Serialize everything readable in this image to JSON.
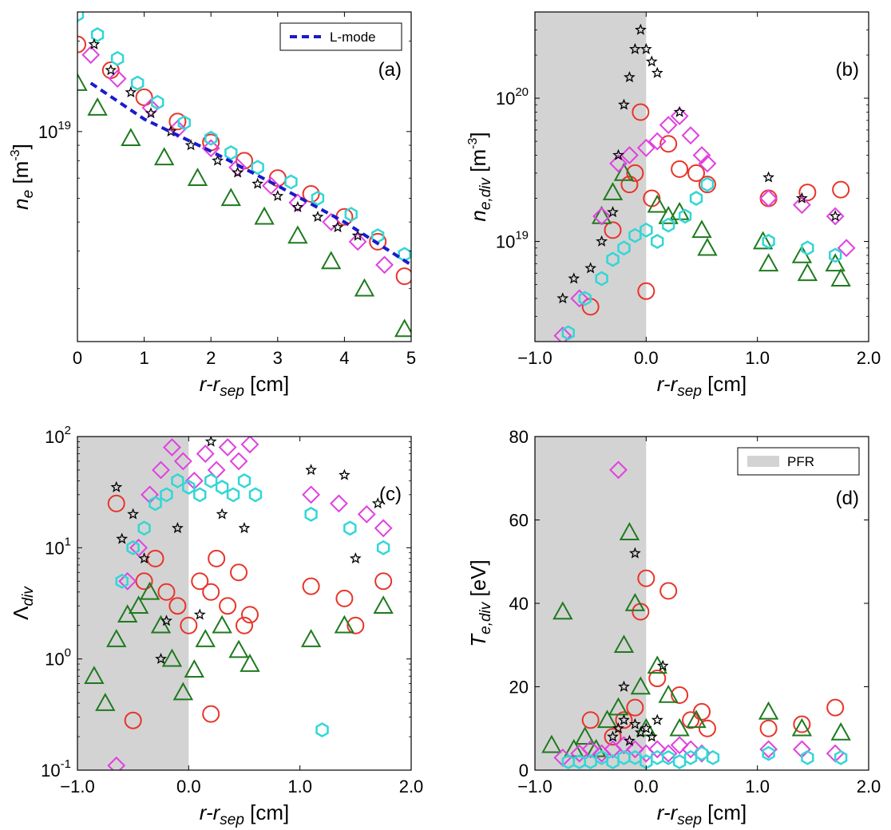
{
  "colors": {
    "o_red": "#e8342a",
    "tri_green": "#1e7a1e",
    "dia_magenta": "#e040e0",
    "hex_cyan": "#33d6d6",
    "star_black": "#000000",
    "lmode_blue": "#1a1acc",
    "pfr_gray": "#d3d3d3"
  },
  "chart_data": [
    {
      "panel": "(a)",
      "type": "scatter",
      "xlabel": "r-r",
      "xlabel_sub": "sep",
      "xlabel_unit": " [cm]",
      "ylabel": "n",
      "ylabel_sub": "e",
      "ylabel_unit": " [m",
      "ylabel_exp": "-3",
      "ylabel_close": "]",
      "xlim": [
        0,
        5
      ],
      "ylim": [
        2000000000000000000,
        25000000000000000000
      ],
      "yscale": "log",
      "xticks": [
        "0",
        "1",
        "2",
        "3",
        "4",
        "5"
      ],
      "yticks": [
        {
          "base": "10",
          "exp": "19",
          "value": 10000000000000000000
        }
      ],
      "legend": [
        {
          "label": "L-mode",
          "style": "dashed",
          "color": "#1a1acc"
        }
      ],
      "legend_position": "top-right",
      "series": [
        {
          "marker": "circle",
          "color": "#e8342a",
          "x": [
            0,
            0.5,
            1,
            1.5,
            2,
            2.5,
            3,
            3.5,
            4,
            4.5,
            4.9
          ],
          "y": [
            1.95e+19,
            1.6e+19,
            1.3e+19,
            1.08e+19,
            9.2e+18,
            8e+18,
            7e+18,
            6.2e+18,
            5.2e+18,
            4.3e+18,
            3.3e+18
          ]
        },
        {
          "marker": "triangle",
          "color": "#1e7a1e",
          "x": [
            0,
            0.3,
            0.8,
            1.3,
            1.8,
            2.3,
            2.8,
            3.3,
            3.8,
            4.3,
            4.9
          ],
          "y": [
            1.45e+19,
            1.2e+19,
            9.5e+18,
            8.2e+18,
            7e+18,
            6e+18,
            5.2e+18,
            4.5e+18,
            3.7e+18,
            3e+18,
            2.2e+18
          ]
        },
        {
          "marker": "diamond",
          "color": "#e040e0",
          "x": [
            0.2,
            0.6,
            1.1,
            1.5,
            2.0,
            2.4,
            2.9,
            3.3,
            3.8,
            4.2,
            4.6
          ],
          "y": [
            1.8e+19,
            1.5e+19,
            1.2e+19,
            1.02e+19,
            8.8e+18,
            7.6e+18,
            6.6e+18,
            5.8e+18,
            5e+18,
            4.3e+18,
            3.6e+18
          ]
        },
        {
          "marker": "hexagon",
          "color": "#33d6d6",
          "x": [
            0,
            0.3,
            0.6,
            0.9,
            1.2,
            1.6,
            2.0,
            2.3,
            2.7,
            3.2,
            3.6,
            4.1,
            4.5,
            4.9
          ],
          "y": [
            2.45e+19,
            2.1e+19,
            1.75e+19,
            1.45e+19,
            1.25e+19,
            1.07e+19,
            9.5e+18,
            8.5e+18,
            7.6e+18,
            6.8e+18,
            6e+18,
            5.3e+18,
            4.5e+18,
            3.9e+18
          ]
        },
        {
          "marker": "star",
          "color": "#000000",
          "x": [
            0.25,
            0.5,
            0.8,
            1.1,
            1.4,
            1.7,
            2.1,
            2.4,
            2.7,
            3.0,
            3.3,
            3.6,
            3.9,
            4.2
          ],
          "y": [
            1.95e+19,
            1.6e+19,
            1.35e+19,
            1.15e+19,
            1e+19,
            9e+18,
            8e+18,
            7.3e+18,
            6.7e+18,
            6.1e+18,
            5.6e+18,
            5.2e+18,
            4.8e+18,
            4.5e+18
          ]
        }
      ],
      "line": {
        "label": "L-mode",
        "x": [
          0.2,
          1,
          2,
          3,
          4,
          5
        ],
        "y": [
          1.45e+19,
          1.1e+19,
          8.6e+18,
          6.6e+18,
          5e+18,
          3.6e+18
        ]
      }
    },
    {
      "panel": "(b)",
      "type": "scatter",
      "xlabel": "r-r",
      "xlabel_sub": "sep",
      "xlabel_unit": " [cm]",
      "ylabel": "n",
      "ylabel_sub": "e,div",
      "ylabel_unit": " [m",
      "ylabel_exp": "-3",
      "ylabel_close": "]",
      "xlim": [
        -1,
        2
      ],
      "ylim": [
        2000000000000000000,
        400000000000000000000
      ],
      "yscale": "log",
      "xticks": [
        "−1.0",
        "0.0",
        "1.0",
        "2.0"
      ],
      "yticks": [
        {
          "base": "10",
          "exp": "19",
          "value": 10000000000000000000
        },
        {
          "base": "10",
          "exp": "20",
          "value": 100000000000000000000
        }
      ],
      "shaded_region": [
        -1,
        0
      ],
      "series": [
        {
          "marker": "circle",
          "color": "#e8342a",
          "x": [
            -0.5,
            -0.3,
            -0.15,
            -0.1,
            0.0,
            0.05,
            0.2,
            0.3,
            0.45,
            0.55,
            1.1,
            1.45,
            1.75,
            -0.05
          ],
          "y": [
            3.5e+18,
            1.2e+19,
            2.5e+19,
            3e+19,
            4.5e+18,
            2e+19,
            4.8e+19,
            3.2e+19,
            3e+19,
            2.5e+19,
            2e+19,
            2.2e+19,
            2.3e+19,
            8e+19
          ]
        },
        {
          "marker": "triangle",
          "color": "#1e7a1e",
          "x": [
            -0.4,
            -0.3,
            -0.2,
            0.1,
            0.2,
            0.3,
            0.5,
            0.55,
            1.05,
            1.1,
            1.4,
            1.45,
            1.7,
            1.75
          ],
          "y": [
            1.5e+19,
            2.2e+19,
            3e+19,
            1.8e+19,
            1.5e+19,
            1.6e+19,
            1.2e+19,
            9e+18,
            1e+19,
            7e+18,
            8e+18,
            6e+18,
            7e+18,
            5.5e+18
          ]
        },
        {
          "marker": "diamond",
          "color": "#e040e0",
          "x": [
            -0.75,
            -0.6,
            -0.4,
            -0.25,
            -0.15,
            0.0,
            0.1,
            0.2,
            0.3,
            0.4,
            0.5,
            0.55,
            1.1,
            1.4,
            1.7,
            1.8
          ],
          "y": [
            2.2e+18,
            4e+18,
            1.5e+19,
            3.5e+19,
            4e+19,
            4.5e+19,
            5e+19,
            6.5e+19,
            7.5e+19,
            5.5e+19,
            4e+19,
            3.5e+19,
            2e+19,
            1.8e+19,
            1.5e+19,
            9e+18
          ]
        },
        {
          "marker": "hexagon",
          "color": "#33d6d6",
          "x": [
            -0.7,
            -0.55,
            -0.4,
            -0.3,
            -0.2,
            -0.1,
            0.0,
            0.1,
            0.2,
            0.35,
            0.45,
            0.55,
            1.1,
            1.45,
            1.7
          ],
          "y": [
            2.3e+18,
            4e+18,
            5.5e+18,
            7.5e+18,
            9e+18,
            1.1e+19,
            1.2e+19,
            1e+19,
            1.3e+19,
            1.5e+19,
            2e+19,
            2.5e+19,
            1e+19,
            9e+18,
            8e+18
          ]
        },
        {
          "marker": "star",
          "color": "#000000",
          "x": [
            -0.75,
            -0.65,
            -0.5,
            -0.4,
            -0.3,
            -0.25,
            -0.2,
            -0.15,
            -0.1,
            -0.05,
            0.0,
            0.05,
            0.1,
            0.3,
            1.1,
            1.4,
            1.7
          ],
          "y": [
            4e+18,
            5.5e+18,
            6.5e+18,
            1e+19,
            1.6e+19,
            4e+19,
            9e+19,
            1.4e+20,
            2.2e+20,
            3e+20,
            2.2e+20,
            1.8e+20,
            1.5e+20,
            8e+19,
            2.8e+19,
            2e+19,
            1.5e+19
          ]
        }
      ]
    },
    {
      "panel": "(c)",
      "type": "scatter",
      "xlabel": "r-r",
      "xlabel_sub": "sep",
      "xlabel_unit": " [cm]",
      "ylabel": "Λ",
      "ylabel_sub": "div",
      "ylabel_unit": "",
      "ylabel_exp": "",
      "ylabel_close": "",
      "xlim": [
        -1,
        2
      ],
      "ylim": [
        0.1,
        100
      ],
      "yscale": "log",
      "xticks": [
        "−1.0",
        "0.0",
        "1.0",
        "2.0"
      ],
      "yticks": [
        {
          "base": "10",
          "exp": "-1",
          "value": 0.1
        },
        {
          "base": "10",
          "exp": "0",
          "value": 1
        },
        {
          "base": "10",
          "exp": "1",
          "value": 10
        },
        {
          "base": "10",
          "exp": "2",
          "value": 100
        }
      ],
      "shaded_region": [
        -1,
        0
      ],
      "series": [
        {
          "marker": "circle",
          "color": "#e8342a",
          "x": [
            -0.65,
            -0.5,
            -0.4,
            -0.3,
            -0.2,
            -0.1,
            0.0,
            0.1,
            0.2,
            0.25,
            0.35,
            0.45,
            0.5,
            0.55,
            1.1,
            1.4,
            1.5,
            1.75,
            0.2
          ],
          "y": [
            25,
            0.28,
            5,
            8,
            4,
            3,
            2,
            5,
            4,
            8,
            3,
            6,
            2,
            2.5,
            4.5,
            3.5,
            2,
            5,
            0.32
          ]
        },
        {
          "marker": "triangle",
          "color": "#1e7a1e",
          "x": [
            -0.85,
            -0.75,
            -0.65,
            -0.55,
            -0.45,
            -0.35,
            -0.25,
            -0.15,
            -0.05,
            0.05,
            0.15,
            0.3,
            0.45,
            0.55,
            1.1,
            1.4,
            1.75
          ],
          "y": [
            0.7,
            0.4,
            1.5,
            2.5,
            3,
            4,
            2,
            1,
            0.5,
            0.8,
            1.5,
            2,
            1.2,
            0.9,
            1.5,
            2,
            3
          ]
        },
        {
          "marker": "diamond",
          "color": "#e040e0",
          "x": [
            -0.65,
            -0.55,
            -0.45,
            -0.35,
            -0.25,
            -0.15,
            -0.05,
            0.05,
            0.15,
            0.25,
            0.35,
            0.45,
            0.55,
            1.1,
            1.35,
            1.6,
            1.75
          ],
          "y": [
            0.11,
            5,
            10,
            30,
            50,
            80,
            60,
            40,
            70,
            50,
            80,
            60,
            85,
            30,
            25,
            20,
            15
          ]
        },
        {
          "marker": "hexagon",
          "color": "#33d6d6",
          "x": [
            -0.6,
            -0.5,
            -0.4,
            -0.3,
            -0.2,
            -0.1,
            0.0,
            0.1,
            0.2,
            0.3,
            0.4,
            0.5,
            0.6,
            1.1,
            1.45,
            1.75,
            1.2
          ],
          "y": [
            5,
            10,
            15,
            25,
            30,
            40,
            35,
            30,
            40,
            35,
            30,
            40,
            30,
            20,
            15,
            10,
            0.23
          ]
        },
        {
          "marker": "star",
          "color": "#000000",
          "x": [
            -0.65,
            -0.6,
            -0.5,
            -0.4,
            -0.25,
            -0.2,
            -0.1,
            0.1,
            0.2,
            0.3,
            0.5,
            1.1,
            1.4,
            1.7,
            1.5
          ],
          "y": [
            35,
            12,
            20,
            8,
            1.0,
            2.2,
            15,
            2.5,
            90,
            20,
            15,
            50,
            45,
            25,
            8
          ]
        }
      ]
    },
    {
      "panel": "(d)",
      "type": "scatter",
      "xlabel": "r-r",
      "xlabel_sub": "sep",
      "xlabel_unit": " [cm]",
      "ylabel": "T",
      "ylabel_sub": "e,div",
      "ylabel_unit": " [eV]",
      "ylabel_exp": "",
      "ylabel_close": "",
      "xlim": [
        -1,
        2
      ],
      "ylim": [
        0,
        80
      ],
      "yscale": "linear",
      "xticks": [
        "−1.0",
        "0.0",
        "1.0",
        "2.0"
      ],
      "yticks": [
        {
          "base": "0",
          "exp": "",
          "value": 0
        },
        {
          "base": "20",
          "exp": "",
          "value": 20
        },
        {
          "base": "40",
          "exp": "",
          "value": 40
        },
        {
          "base": "60",
          "exp": "",
          "value": 60
        },
        {
          "base": "80",
          "exp": "",
          "value": 80
        }
      ],
      "shaded_region": [
        -1,
        0
      ],
      "legend": [
        {
          "label": "PFR",
          "style": "patch",
          "color": "#d3d3d3"
        }
      ],
      "legend_position": "top-right",
      "series": [
        {
          "marker": "circle",
          "color": "#e8342a",
          "x": [
            -0.5,
            -0.3,
            -0.2,
            -0.1,
            -0.05,
            0.0,
            0.1,
            0.2,
            0.3,
            0.4,
            0.5,
            0.55,
            1.1,
            1.4,
            1.7
          ],
          "y": [
            12,
            8,
            12,
            15,
            38,
            46,
            22,
            43,
            18,
            12,
            14,
            10,
            10,
            11,
            15
          ]
        },
        {
          "marker": "triangle",
          "color": "#1e7a1e",
          "x": [
            -0.85,
            -0.75,
            -0.65,
            -0.55,
            -0.45,
            -0.35,
            -0.25,
            -0.2,
            -0.15,
            -0.1,
            -0.05,
            0.0,
            0.1,
            0.2,
            0.3,
            0.45,
            1.1,
            1.4,
            1.75
          ],
          "y": [
            6,
            38,
            5,
            8,
            5,
            12,
            15,
            30,
            57,
            40,
            20,
            10,
            25,
            18,
            10,
            12,
            14,
            10,
            9
          ]
        },
        {
          "marker": "diamond",
          "color": "#e040e0",
          "x": [
            -0.75,
            -0.6,
            -0.5,
            -0.4,
            -0.3,
            -0.25,
            -0.2,
            -0.1,
            0.0,
            0.1,
            0.2,
            0.3,
            0.4,
            0.5,
            1.1,
            1.4,
            1.7
          ],
          "y": [
            3,
            4,
            5,
            4,
            5,
            72,
            6,
            5,
            4,
            5,
            4,
            6,
            5,
            4,
            5,
            5,
            4
          ]
        },
        {
          "marker": "hexagon",
          "color": "#33d6d6",
          "x": [
            -0.7,
            -0.6,
            -0.5,
            -0.4,
            -0.3,
            -0.2,
            -0.1,
            0.0,
            0.1,
            0.2,
            0.3,
            0.4,
            0.5,
            0.6,
            1.1,
            1.45,
            1.75
          ],
          "y": [
            2,
            2,
            2,
            3,
            2,
            3,
            3,
            2,
            3,
            3,
            2,
            3,
            4,
            3,
            4,
            3,
            3
          ]
        },
        {
          "marker": "star",
          "color": "#000000",
          "x": [
            -0.3,
            -0.25,
            -0.2,
            -0.15,
            -0.1,
            -0.05,
            0.0,
            0.05,
            0.1,
            0.15,
            -0.1,
            -0.2
          ],
          "y": [
            8,
            10,
            12,
            7,
            11,
            9,
            10,
            8,
            12,
            25,
            52,
            20
          ]
        }
      ]
    }
  ]
}
